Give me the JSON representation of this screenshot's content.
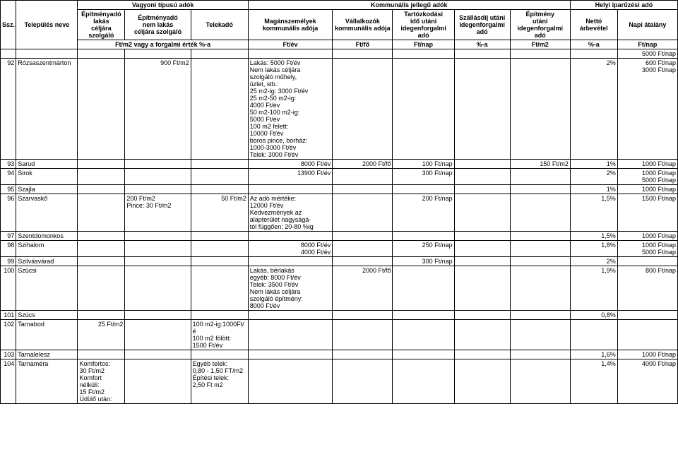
{
  "header": {
    "group_vagyoni": "Vagyoni típusú adók",
    "group_kommunalis": "Kommunális jellegű adók",
    "group_helyi": "Helyi iparűzési adó",
    "ssz": "Ssz.",
    "telepules": "Település neve",
    "epitmenyado_lakas": "Építményadó\nlakás\ncéljára szolgáló",
    "epitmenyado_nemlakas": "Építményadó\nnem lakás\ncéljára szolgáló",
    "telekado": "Telekadó",
    "maganszemelyek": "Magánszemélyek\nkommunális adója",
    "vallalkozok": "Vállalkozók\nkommunális adója",
    "tartozkodasi": "Tartózkodási\nidő utáni\nidegenforgalmi adó",
    "szallasdij": "Szállásdíj utáni\nidegenforgalmi\nadó",
    "epitmeny_utani": "Építmény\nutáni\nidegenforgalmi adó",
    "netto_arbevetel": "Nettó árbevétel",
    "napi_atalany": "Napi átalány",
    "unit_vagyoni": "Ft/m2 vagy a forgalmi érték %-a",
    "unit_ftev": "Ft/év",
    "unit_ftfo": "Ft/fő",
    "unit_ftnap": "Ft/nap",
    "unit_pct": "%-a",
    "unit_ftm2": "Ft/m2"
  },
  "rows": {
    "blank_napi": "5000 Ft/nap",
    "r92": {
      "n": "92",
      "name": "Rózsaszentmárton",
      "nemlakas": "900 Ft/m2",
      "magan": "Lakás:  5000 Ft/év\nNem lakás céljára\nszolgáló műhely,\nüzlet, stb.:\n25 m2-ig: 3000 Ft/év\n25 m2-50 m2-ig:\n4000 Ft/év\n50 m2-100 m2-ig:\n5000 Ft/év\n100 m2 felett:\n10000 Ft/év\nboros pince, borház:\n1000-3000 Ft/év\nTelek: 3000 Ft/év",
      "netto": "2%",
      "napi": "600 Ft/nap\n3000 Ft/nap"
    },
    "r93": {
      "n": "93",
      "name": "Sarud",
      "magan": "8000 Ft/év",
      "vall": "2000 Ft/fő",
      "tart": "100 Ft/nap",
      "epit": "150 Ft/m2",
      "netto": "1%",
      "napi": "1000 Ft/nap"
    },
    "r94": {
      "n": "94",
      "name": "Sirok",
      "magan": "13900 Ft/év",
      "tart": "300 Ft/nap",
      "netto": "2%",
      "napi": "1000 Ft/nap\n5000 Ft/nap"
    },
    "r95": {
      "n": "95",
      "name": "Szajla",
      "netto": "1%",
      "napi": "1000 Ft/nap"
    },
    "r96": {
      "n": "96",
      "name": "Szarvaskő",
      "nemlakas": "200 Ft/m2\nPince: 30 Ft/m2",
      "telek": "50 Ft/m2",
      "magan": "Az adó mértéke:\n12000 Ft/év\nKedvezmények az\nalapterület nagyságá-\ntól függően: 20-80 %ig",
      "tart": "200 Ft/nap",
      "netto": "1,5%",
      "napi": "1500 Ft/nap"
    },
    "r97": {
      "n": "97",
      "name": "Szentdomonkos",
      "netto": "1,5%",
      "napi": "1000 Ft/nap"
    },
    "r98": {
      "n": "98",
      "name": "Szihalom",
      "magan": "8000 Ft/év\n4000 Ft/év",
      "tart": "250 Ft/nap",
      "netto": "1,8%",
      "napi": "1000 Ft/nap\n5000 Ft/nap"
    },
    "r99": {
      "n": "99",
      "name": "Szilvásvárad",
      "tart": "300 Ft/nap",
      "netto": "2%"
    },
    "r100": {
      "n": "100",
      "name": "Szücsi",
      "magan": "Lakás, bérlakás\negyéb: 8000 Ft/év\nTelek: 3500 Ft/év\nNem lakás céljára\nszolgáló építmény:\n8000 Ft/év",
      "vall": "2000 Ft/fő",
      "netto": "1,9%",
      "napi": "800 Ft/nap"
    },
    "r101": {
      "n": "101",
      "name": "Szúcs",
      "netto": "0,8%"
    },
    "r102": {
      "n": "102",
      "name": "Tarnabod",
      "lakas": "25 Ft/m2",
      "telek": "100 m2-ig:1000Ft/é\n100 m2 fölött:\n1500 Ft/év"
    },
    "r103": {
      "n": "103",
      "name": "Tarnalelesz",
      "netto": "1,6%",
      "napi": "1000 Ft/nap"
    },
    "r104": {
      "n": "104",
      "name": "Tarnaméra",
      "lakas": "Komfortos:\n30 Ft/m2\nKomfort nélküli:\n15 Ft/m2\nÜdülő után:",
      "telek": "Egyéb telek:\n0,80 - 1,50 FT/m2\nÉpítési telek:\n2,50 Ft m2",
      "netto": "1,4%",
      "napi": "4000 Ft/nap"
    }
  }
}
